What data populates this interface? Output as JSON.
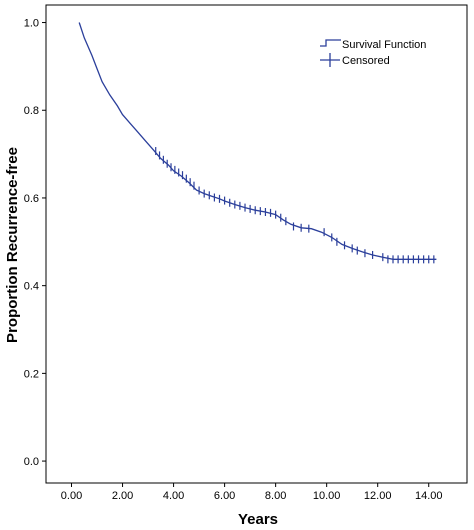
{
  "chart_data": {
    "type": "line",
    "xlabel": "Years",
    "ylabel": "Proportion Recurrence-free",
    "xlim": [
      -1,
      15.5
    ],
    "ylim": [
      -0.05,
      1.04
    ],
    "x_ticks": [
      "0.00",
      "2.00",
      "4.00",
      "6.00",
      "8.00",
      "10.00",
      "12.00",
      "14.00"
    ],
    "x_tick_values": [
      0,
      2,
      4,
      6,
      8,
      10,
      12,
      14
    ],
    "y_ticks": [
      "0.0",
      "0.2",
      "0.4",
      "0.6",
      "0.8",
      "1.0"
    ],
    "y_tick_values": [
      0,
      0.2,
      0.4,
      0.6,
      0.8,
      1.0
    ],
    "legend_position": "top-right",
    "colors": {
      "line": "#2b3f9b",
      "frame": "#000000"
    },
    "series": [
      {
        "name": "Survival Function",
        "x": [
          0.3,
          0.5,
          0.8,
          1.0,
          1.2,
          1.5,
          1.8,
          2.0,
          2.3,
          2.6,
          2.9,
          3.2,
          3.5,
          3.8,
          4.0,
          4.3,
          4.6,
          4.9,
          5.2,
          5.5,
          5.8,
          6.0,
          6.4,
          6.8,
          7.2,
          7.6,
          8.0,
          8.3,
          8.6,
          9.0,
          9.4,
          9.8,
          10.2,
          10.6,
          11.0,
          11.4,
          11.8,
          12.2,
          12.6,
          13.0,
          13.5,
          14.0,
          14.3
        ],
        "y": [
          1.0,
          0.965,
          0.925,
          0.895,
          0.865,
          0.835,
          0.81,
          0.79,
          0.77,
          0.75,
          0.73,
          0.71,
          0.69,
          0.675,
          0.662,
          0.65,
          0.635,
          0.618,
          0.61,
          0.604,
          0.598,
          0.593,
          0.585,
          0.578,
          0.572,
          0.568,
          0.562,
          0.55,
          0.54,
          0.532,
          0.53,
          0.522,
          0.51,
          0.494,
          0.485,
          0.477,
          0.47,
          0.465,
          0.46,
          0.46,
          0.46,
          0.46,
          0.46
        ]
      }
    ],
    "censored": {
      "name": "Censored",
      "x": [
        3.3,
        3.45,
        3.6,
        3.75,
        3.9,
        4.05,
        4.2,
        4.35,
        4.5,
        4.65,
        4.8,
        5.0,
        5.2,
        5.4,
        5.6,
        5.8,
        6.0,
        6.2,
        6.4,
        6.6,
        6.8,
        7.0,
        7.2,
        7.4,
        7.6,
        7.8,
        8.0,
        8.2,
        8.4,
        8.7,
        9.0,
        9.3,
        9.9,
        10.2,
        10.4,
        10.7,
        11.0,
        11.2,
        11.5,
        11.8,
        12.2,
        12.4,
        12.6,
        12.8,
        13.0,
        13.2,
        13.4,
        13.6,
        13.8,
        14.0,
        14.2
      ],
      "y": [
        0.707,
        0.697,
        0.687,
        0.678,
        0.67,
        0.664,
        0.658,
        0.652,
        0.644,
        0.636,
        0.628,
        0.617,
        0.61,
        0.606,
        0.601,
        0.598,
        0.594,
        0.589,
        0.585,
        0.582,
        0.578,
        0.575,
        0.572,
        0.57,
        0.568,
        0.566,
        0.562,
        0.555,
        0.547,
        0.535,
        0.532,
        0.53,
        0.522,
        0.51,
        0.5,
        0.492,
        0.485,
        0.48,
        0.474,
        0.47,
        0.465,
        0.46,
        0.46,
        0.46,
        0.46,
        0.46,
        0.46,
        0.46,
        0.46,
        0.46,
        0.46
      ]
    }
  }
}
